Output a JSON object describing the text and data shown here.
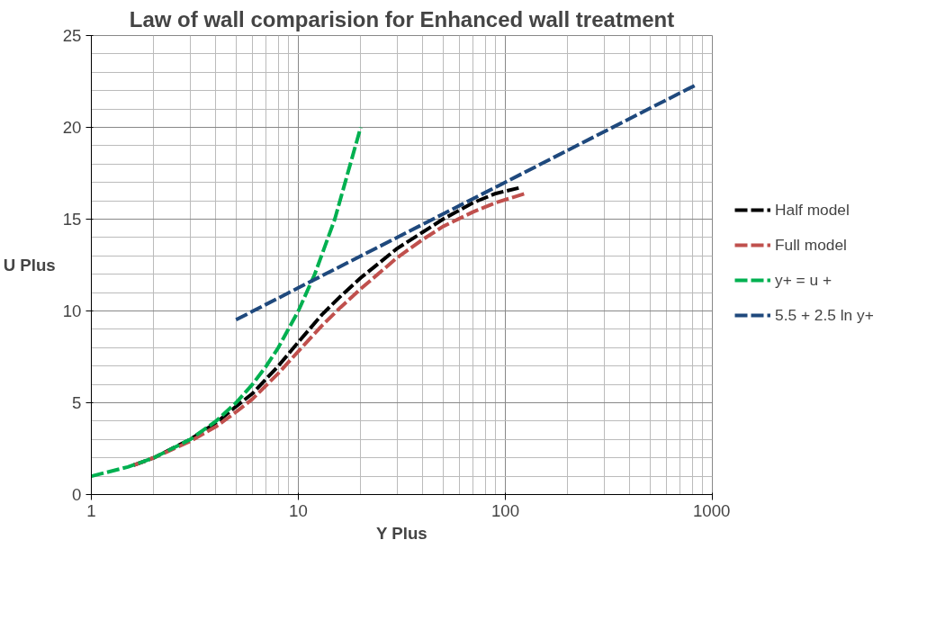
{
  "chart_data": {
    "type": "line",
    "title": "Law of wall comparision for Enhanced wall treatment",
    "xlabel": "Y Plus",
    "ylabel": "U Plus",
    "log": "x",
    "xlim": [
      1,
      1000
    ],
    "xticks": [
      1,
      10,
      100,
      1000
    ],
    "ylim": [
      0,
      25
    ],
    "yticks": [
      0,
      5,
      10,
      15,
      20,
      25
    ],
    "grid": true,
    "legend": "right",
    "line_style": "dashed",
    "marker": "none",
    "series": [
      {
        "name": "Half model",
        "color": "#000000",
        "x": [
          1.6,
          2,
          3,
          4,
          5,
          6,
          8,
          10,
          13,
          16,
          20,
          30,
          40,
          50,
          70,
          90,
          116
        ],
        "values": [
          1.6,
          2.0,
          3.0,
          3.9,
          4.8,
          5.5,
          7.0,
          8.3,
          9.8,
          10.8,
          11.8,
          13.4,
          14.3,
          15.0,
          15.9,
          16.4,
          16.7
        ]
      },
      {
        "name": "Full model",
        "color": "#c0504d",
        "x": [
          1.6,
          2,
          3,
          4,
          5,
          6,
          8,
          10,
          13,
          16,
          20,
          30,
          40,
          50,
          70,
          90,
          125
        ],
        "values": [
          1.6,
          2.0,
          2.9,
          3.7,
          4.5,
          5.2,
          6.6,
          7.8,
          9.2,
          10.2,
          11.2,
          12.9,
          13.9,
          14.6,
          15.4,
          15.9,
          16.4
        ]
      },
      {
        "name": "y+ = u +",
        "color": "#00b050",
        "x": [
          1,
          1.5,
          2,
          3,
          4,
          5,
          6,
          7,
          8,
          10,
          12,
          15,
          20
        ],
        "values": [
          1,
          1.5,
          2,
          3,
          4,
          5,
          6,
          7,
          8,
          10,
          12,
          15,
          20
        ]
      },
      {
        "name": "5.5 + 2.5 ln y+",
        "color": "#1f497d",
        "x": [
          5,
          10,
          20,
          50,
          100,
          200,
          500,
          850
        ],
        "values": [
          9.52,
          11.26,
          12.99,
          15.28,
          17.01,
          18.75,
          21.04,
          22.36
        ]
      }
    ]
  }
}
